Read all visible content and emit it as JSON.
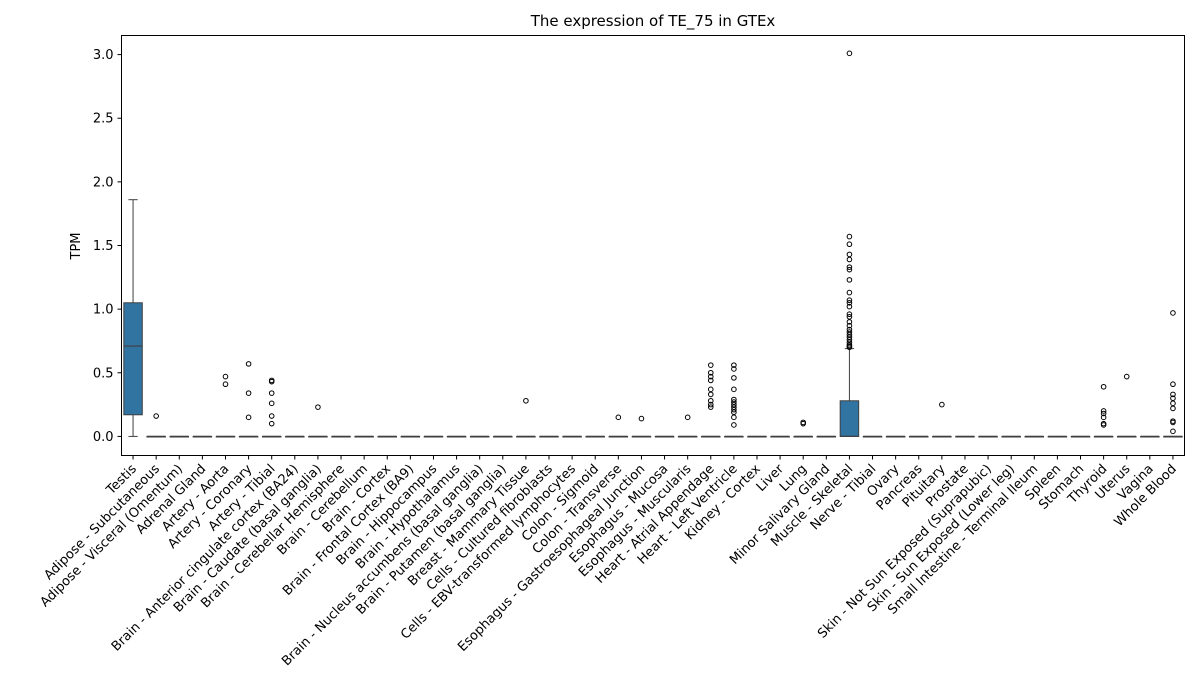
{
  "chart_data": {
    "type": "box",
    "title": "The expression of TE_75 in GTEx",
    "xlabel": "",
    "ylabel": "TPM",
    "ylim": [
      -0.15,
      3.15
    ],
    "yticks": [
      "0.0",
      "0.5",
      "1.0",
      "1.5",
      "2.0",
      "2.5",
      "3.0"
    ],
    "grid": false,
    "box_color": "#3274a1",
    "categories": [
      "Testis",
      "Adipose - Subcutaneous",
      "Adipose - Visceral (Omentum)",
      "Adrenal Gland",
      "Artery - Aorta",
      "Artery - Coronary",
      "Artery - Tibial",
      "Brain - Anterior cingulate cortex (BA24)",
      "Brain - Caudate (basal ganglia)",
      "Brain - Cerebellar Hemisphere",
      "Brain - Cerebellum",
      "Brain - Cortex",
      "Brain - Frontal Cortex (BA9)",
      "Brain - Hippocampus",
      "Brain - Hypothalamus",
      "Brain - Nucleus accumbens (basal ganglia)",
      "Brain - Putamen (basal ganglia)",
      "Breast - Mammary Tissue",
      "Cells - Cultured fibroblasts",
      "Cells - EBV-transformed lymphocytes",
      "Colon - Sigmoid",
      "Colon - Transverse",
      "Esophagus - Gastroesophageal Junction",
      "Esophagus - Mucosa",
      "Esophagus - Muscularis",
      "Heart - Atrial Appendage",
      "Heart - Left Ventricle",
      "Kidney - Cortex",
      "Liver",
      "Lung",
      "Minor Salivary Gland",
      "Muscle - Skeletal",
      "Nerve - Tibial",
      "Ovary",
      "Pancreas",
      "Pituitary",
      "Prostate",
      "Skin - Not Sun Exposed (Suprapubic)",
      "Skin - Sun Exposed (Lower leg)",
      "Small Intestine - Terminal Ileum",
      "Spleen",
      "Stomach",
      "Thyroid",
      "Uterus",
      "Vagina",
      "Whole Blood"
    ],
    "boxes": [
      {
        "q1": 0.17,
        "median": 0.71,
        "q3": 1.05,
        "whisker_low": 0.0,
        "whisker_high": 1.86,
        "outliers": []
      },
      {
        "q1": 0,
        "median": 0,
        "q3": 0,
        "whisker_low": 0,
        "whisker_high": 0,
        "outliers": [
          0.16
        ]
      },
      {
        "q1": 0,
        "median": 0,
        "q3": 0,
        "whisker_low": 0,
        "whisker_high": 0,
        "outliers": []
      },
      {
        "q1": 0,
        "median": 0,
        "q3": 0,
        "whisker_low": 0,
        "whisker_high": 0,
        "outliers": []
      },
      {
        "q1": 0,
        "median": 0,
        "q3": 0,
        "whisker_low": 0,
        "whisker_high": 0,
        "outliers": [
          0.47,
          0.41
        ]
      },
      {
        "q1": 0,
        "median": 0,
        "q3": 0,
        "whisker_low": 0,
        "whisker_high": 0,
        "outliers": [
          0.57,
          0.34,
          0.15
        ]
      },
      {
        "q1": 0,
        "median": 0,
        "q3": 0,
        "whisker_low": 0,
        "whisker_high": 0,
        "outliers": [
          0.44,
          0.43,
          0.34,
          0.26,
          0.16,
          0.1
        ]
      },
      {
        "q1": 0,
        "median": 0,
        "q3": 0,
        "whisker_low": 0,
        "whisker_high": 0,
        "outliers": []
      },
      {
        "q1": 0,
        "median": 0,
        "q3": 0,
        "whisker_low": 0,
        "whisker_high": 0,
        "outliers": [
          0.23
        ]
      },
      {
        "q1": 0,
        "median": 0,
        "q3": 0,
        "whisker_low": 0,
        "whisker_high": 0,
        "outliers": []
      },
      {
        "q1": 0,
        "median": 0,
        "q3": 0,
        "whisker_low": 0,
        "whisker_high": 0,
        "outliers": []
      },
      {
        "q1": 0,
        "median": 0,
        "q3": 0,
        "whisker_low": 0,
        "whisker_high": 0,
        "outliers": []
      },
      {
        "q1": 0,
        "median": 0,
        "q3": 0,
        "whisker_low": 0,
        "whisker_high": 0,
        "outliers": []
      },
      {
        "q1": 0,
        "median": 0,
        "q3": 0,
        "whisker_low": 0,
        "whisker_high": 0,
        "outliers": []
      },
      {
        "q1": 0,
        "median": 0,
        "q3": 0,
        "whisker_low": 0,
        "whisker_high": 0,
        "outliers": []
      },
      {
        "q1": 0,
        "median": 0,
        "q3": 0,
        "whisker_low": 0,
        "whisker_high": 0,
        "outliers": []
      },
      {
        "q1": 0,
        "median": 0,
        "q3": 0,
        "whisker_low": 0,
        "whisker_high": 0,
        "outliers": []
      },
      {
        "q1": 0,
        "median": 0,
        "q3": 0,
        "whisker_low": 0,
        "whisker_high": 0,
        "outliers": [
          0.28
        ]
      },
      {
        "q1": 0,
        "median": 0,
        "q3": 0,
        "whisker_low": 0,
        "whisker_high": 0,
        "outliers": []
      },
      {
        "q1": 0,
        "median": 0,
        "q3": 0,
        "whisker_low": 0,
        "whisker_high": 0,
        "outliers": []
      },
      {
        "q1": 0,
        "median": 0,
        "q3": 0,
        "whisker_low": 0,
        "whisker_high": 0,
        "outliers": []
      },
      {
        "q1": 0,
        "median": 0,
        "q3": 0,
        "whisker_low": 0,
        "whisker_high": 0,
        "outliers": [
          0.15
        ]
      },
      {
        "q1": 0,
        "median": 0,
        "q3": 0,
        "whisker_low": 0,
        "whisker_high": 0,
        "outliers": [
          0.14
        ]
      },
      {
        "q1": 0,
        "median": 0,
        "q3": 0,
        "whisker_low": 0,
        "whisker_high": 0,
        "outliers": []
      },
      {
        "q1": 0,
        "median": 0,
        "q3": 0,
        "whisker_low": 0,
        "whisker_high": 0,
        "outliers": [
          0.15
        ]
      },
      {
        "q1": 0,
        "median": 0,
        "q3": 0,
        "whisker_low": 0,
        "whisker_high": 0,
        "outliers": [
          0.56,
          0.5,
          0.47,
          0.44,
          0.37,
          0.33,
          0.28,
          0.25,
          0.23
        ]
      },
      {
        "q1": 0,
        "median": 0,
        "q3": 0,
        "whisker_low": 0,
        "whisker_high": 0,
        "outliers": [
          0.56,
          0.53,
          0.46,
          0.37,
          0.29,
          0.27,
          0.25,
          0.23,
          0.21,
          0.19,
          0.15,
          0.09
        ]
      },
      {
        "q1": 0,
        "median": 0,
        "q3": 0,
        "whisker_low": 0,
        "whisker_high": 0,
        "outliers": []
      },
      {
        "q1": 0,
        "median": 0,
        "q3": 0,
        "whisker_low": 0,
        "whisker_high": 0,
        "outliers": []
      },
      {
        "q1": 0,
        "median": 0,
        "q3": 0,
        "whisker_low": 0,
        "whisker_high": 0,
        "outliers": [
          0.11,
          0.1
        ]
      },
      {
        "q1": 0,
        "median": 0,
        "q3": 0,
        "whisker_low": 0,
        "whisker_high": 0,
        "outliers": []
      },
      {
        "q1": 0.0,
        "median": 0.0,
        "q3": 0.28,
        "whisker_low": 0.0,
        "whisker_high": 0.69,
        "outliers": [
          3.01,
          1.57,
          1.51,
          1.43,
          1.39,
          1.33,
          1.31,
          1.23,
          1.13,
          1.07,
          1.05,
          1.02,
          0.96,
          0.94,
          0.9,
          0.87,
          0.84,
          0.82,
          0.8,
          0.78,
          0.76,
          0.74,
          0.72,
          0.71,
          0.7
        ]
      },
      {
        "q1": 0,
        "median": 0,
        "q3": 0,
        "whisker_low": 0,
        "whisker_high": 0,
        "outliers": []
      },
      {
        "q1": 0,
        "median": 0,
        "q3": 0,
        "whisker_low": 0,
        "whisker_high": 0,
        "outliers": []
      },
      {
        "q1": 0,
        "median": 0,
        "q3": 0,
        "whisker_low": 0,
        "whisker_high": 0,
        "outliers": []
      },
      {
        "q1": 0,
        "median": 0,
        "q3": 0,
        "whisker_low": 0,
        "whisker_high": 0,
        "outliers": [
          0.25
        ]
      },
      {
        "q1": 0,
        "median": 0,
        "q3": 0,
        "whisker_low": 0,
        "whisker_high": 0,
        "outliers": []
      },
      {
        "q1": 0,
        "median": 0,
        "q3": 0,
        "whisker_low": 0,
        "whisker_high": 0,
        "outliers": []
      },
      {
        "q1": 0,
        "median": 0,
        "q3": 0,
        "whisker_low": 0,
        "whisker_high": 0,
        "outliers": []
      },
      {
        "q1": 0,
        "median": 0,
        "q3": 0,
        "whisker_low": 0,
        "whisker_high": 0,
        "outliers": []
      },
      {
        "q1": 0,
        "median": 0,
        "q3": 0,
        "whisker_low": 0,
        "whisker_high": 0,
        "outliers": []
      },
      {
        "q1": 0,
        "median": 0,
        "q3": 0,
        "whisker_low": 0,
        "whisker_high": 0,
        "outliers": []
      },
      {
        "q1": 0,
        "median": 0,
        "q3": 0,
        "whisker_low": 0,
        "whisker_high": 0,
        "outliers": [
          0.39,
          0.2,
          0.18,
          0.15,
          0.1,
          0.09
        ]
      },
      {
        "q1": 0,
        "median": 0,
        "q3": 0,
        "whisker_low": 0,
        "whisker_high": 0,
        "outliers": [
          0.47
        ]
      },
      {
        "q1": 0,
        "median": 0,
        "q3": 0,
        "whisker_low": 0,
        "whisker_high": 0,
        "outliers": []
      },
      {
        "q1": 0,
        "median": 0,
        "q3": 0,
        "whisker_low": 0,
        "whisker_high": 0,
        "outliers": [
          0.97,
          0.41,
          0.33,
          0.3,
          0.26,
          0.22,
          0.12,
          0.11,
          0.04
        ]
      }
    ]
  }
}
